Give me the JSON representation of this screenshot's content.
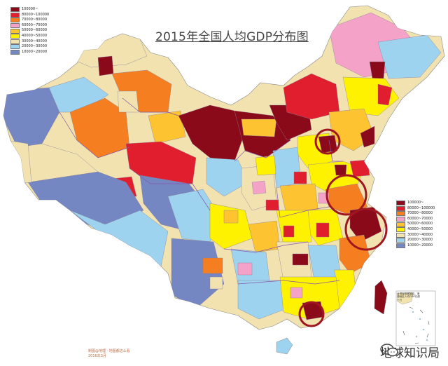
{
  "title": "2015年全国人均GDP分布图",
  "legend_top": {
    "items": [
      {
        "label": "100000~",
        "color": "#8b0a1a"
      },
      {
        "label": "80000~100000",
        "color": "#e01e2e"
      },
      {
        "label": "70000~80000",
        "color": "#f57f20"
      },
      {
        "label": "60000~70000",
        "color": "#f5a2c8"
      },
      {
        "label": "50000~60000",
        "color": "#fdc331"
      },
      {
        "label": "40000~50000",
        "color": "#fef200"
      },
      {
        "label": "30000~40000",
        "color": "#f1e2b0"
      },
      {
        "label": "20000~30000",
        "color": "#9dd3ee"
      },
      {
        "label": "10000~20000",
        "color": "#7487c2"
      }
    ]
  },
  "legend_bottom": {
    "items": [
      {
        "label": "100000~",
        "color": "#8b0a1a"
      },
      {
        "label": "80000~100000",
        "color": "#e01e2e"
      },
      {
        "label": "70000~80000",
        "color": "#f57f20"
      },
      {
        "label": "60000~70000",
        "color": "#f5a2c8"
      },
      {
        "label": "50000~60000",
        "color": "#fdc331"
      },
      {
        "label": "40000~50000",
        "color": "#fef200"
      },
      {
        "label": "30000~40000",
        "color": "#f1e2b0"
      },
      {
        "label": "20000~30000",
        "color": "#9dd3ee"
      },
      {
        "label": "10000~20000",
        "color": "#7487c2"
      }
    ]
  },
  "credit_line1": "制图@地理 · 地图都这么看",
  "credit_line2": "2016年3月",
  "inset_label": "台湾省数据暂缺，港澳地区人均GDP已超十万",
  "watermark": "地球知识局",
  "watermark_icon": "wechat-icon",
  "highlight_circle_color": "#a01620"
}
